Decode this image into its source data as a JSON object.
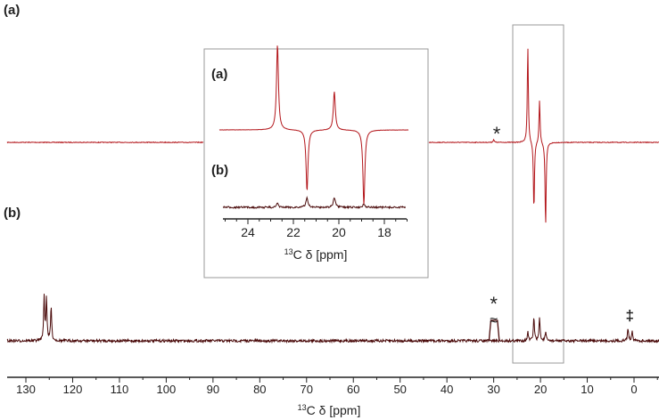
{
  "chart_data": {
    "type": "line",
    "xlabel_sup": "13",
    "xlabel": "C δ [ppm]",
    "xlim": [
      134,
      -5
    ],
    "x_reversed": true,
    "xticks": [
      130,
      120,
      110,
      100,
      90,
      80,
      70,
      60,
      50,
      40,
      30,
      20,
      10,
      0
    ],
    "grid": false,
    "colors": {
      "a": "#b3161b",
      "b": "#4a0a0a",
      "frame": "#9a9a9a"
    },
    "series": [
      {
        "name": "(a)",
        "peaks": [
          {
            "ppm": 22.7,
            "intensity": 1.0
          },
          {
            "ppm": 21.4,
            "intensity": -0.72
          },
          {
            "ppm": 20.2,
            "intensity": 0.45
          },
          {
            "ppm": 18.9,
            "intensity": -0.88
          },
          {
            "ppm": 30.0,
            "intensity": 0.03
          }
        ]
      },
      {
        "name": "(b)",
        "peaks": [
          {
            "ppm": 126.1,
            "intensity": 1.0
          },
          {
            "ppm": 125.6,
            "intensity": 1.0
          },
          {
            "ppm": 124.6,
            "intensity": 0.8
          },
          {
            "ppm": 30.0,
            "intensity": 0.5
          },
          {
            "ppm": 22.7,
            "intensity": 0.2
          },
          {
            "ppm": 21.4,
            "intensity": 0.55
          },
          {
            "ppm": 20.2,
            "intensity": 0.55
          },
          {
            "ppm": 18.9,
            "intensity": 0.2
          },
          {
            "ppm": 1.3,
            "intensity": 0.3
          },
          {
            "ppm": 0.4,
            "intensity": 0.25
          }
        ]
      }
    ],
    "annotations": {
      "star": "*",
      "double_dagger": "‡",
      "break": "≈"
    },
    "highlight_range_ppm": [
      26,
      15
    ],
    "inset": {
      "xlim": [
        25.1,
        17.1
      ],
      "xticks": [
        24,
        22,
        20,
        18
      ],
      "xlabel_sup": "13",
      "xlabel": "C δ [ppm]",
      "labels": [
        "(a)",
        "(b)"
      ]
    }
  }
}
